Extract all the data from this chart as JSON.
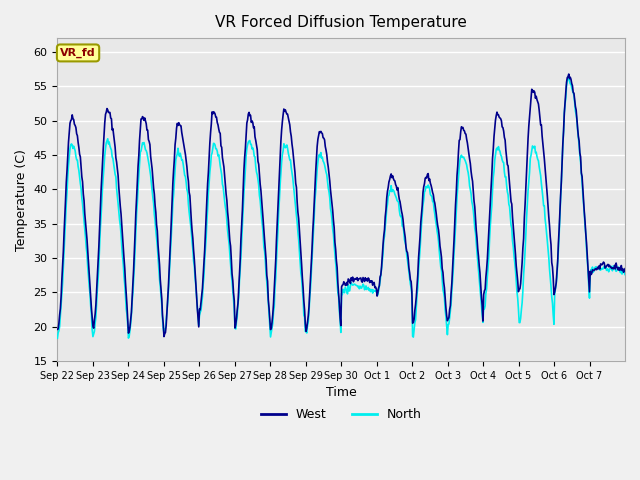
{
  "title": "VR Forced Diffusion Temperature",
  "xlabel": "Time",
  "ylabel": "Temperature (C)",
  "ylim": [
    15,
    62
  ],
  "yticks": [
    15,
    20,
    25,
    30,
    35,
    40,
    45,
    50,
    55,
    60
  ],
  "plot_bg_color": "#e8e8e8",
  "fig_bg_color": "#f0f0f0",
  "west_color": "#00008B",
  "north_color": "#00EEEE",
  "annotation_text": "VR_fd",
  "annotation_color": "#8B0000",
  "annotation_bg": "#FFFF99",
  "annotation_border": "#999900",
  "legend_west": "West",
  "legend_north": "North",
  "grid_color": "#ffffff",
  "tick_labels": [
    "Sep 22",
    "Sep 23",
    "Sep 24",
    "Sep 25",
    "Sep 26",
    "Sep 27",
    "Sep 28",
    "Sep 29",
    "Sep 30",
    "Oct 1",
    "Oct 2",
    "Oct 3",
    "Oct 4",
    "Oct 5",
    "Oct 6",
    "Oct 7"
  ],
  "num_days": 16,
  "west_peaks": [
    50.5,
    51.5,
    50.5,
    49.5,
    51.0,
    51.0,
    51.5,
    48.5,
    27.0,
    42.0,
    42.0,
    49.0,
    51.0,
    54.5,
    56.5,
    29.0
  ],
  "west_mins": [
    19.5,
    20.0,
    19.0,
    18.5,
    22.5,
    20.0,
    19.5,
    19.5,
    26.0,
    24.5,
    20.5,
    21.0,
    24.5,
    25.0,
    25.0,
    28.0
  ],
  "north_peaks": [
    46.5,
    47.0,
    46.5,
    45.5,
    46.5,
    47.0,
    46.5,
    45.0,
    26.0,
    40.0,
    40.5,
    45.0,
    46.0,
    46.0,
    56.0,
    28.5
  ],
  "north_mins": [
    18.5,
    18.5,
    18.5,
    19.0,
    21.5,
    19.5,
    18.5,
    19.0,
    25.0,
    24.5,
    18.5,
    20.0,
    22.5,
    20.0,
    24.5,
    28.0
  ]
}
